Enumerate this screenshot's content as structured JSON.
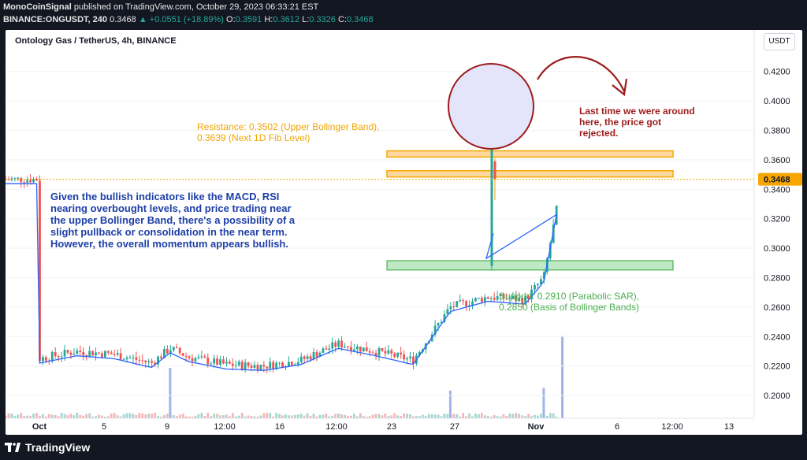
{
  "header": {
    "author": "MonoCoinSignal",
    "published": "published on TradingView.com, October 29, 2023 06:33:21 EST",
    "symbol": "BINANCE:ONGUSDT, 240",
    "last": "0.3468",
    "change": "▲ +0.0551 (+18.89%)",
    "o_label": "O:",
    "o": "0.3591",
    "h_label": "H:",
    "h": "0.3612",
    "l_label": "L:",
    "l": "0.3326",
    "c_label": "C:",
    "c": "0.3468"
  },
  "chart_title": "Ontology Gas / TetherUS, 4h, BINANCE",
  "currency": "USDT",
  "footer": {
    "brand": "TradingView",
    "logo_icon": "tradingview-logo-icon"
  },
  "colors": {
    "up": "#26a69a",
    "down": "#ef5350",
    "resistance": "#f7a600",
    "support": "#4caf50",
    "bb_basis": "#2962ff",
    "note_blue": "#1e3fa8",
    "note_red": "#9c1c1c",
    "price_tag": "#f7a600"
  },
  "annotations": {
    "resistance": [
      "Resistance: 0.3502 (Upper Bollinger Band),",
      "0.3639 (Next 1D Fib Level)"
    ],
    "support": [
      "Support: 0.2910 (Parabolic SAR),",
      "0.2850 (Basis of Bollinger Bands)"
    ],
    "analysis": [
      "Given the bullish indicators like the MACD, RSI",
      "nearing overbought levels, and price trading near",
      "the upper Bollinger Band, there's a possibility of a",
      "slight pullback or consolidation in the near term.",
      "However, the overall momentum appears bullish."
    ],
    "rejection": [
      "Last time we were around",
      "here, the price got",
      "rejected."
    ]
  },
  "chart_data": {
    "type": "candlestick",
    "title": "Ontology Gas / TetherUS, 4h, BINANCE",
    "y_axis": {
      "ticks": [
        "0.4200",
        "0.4000",
        "0.3800",
        "0.3600",
        "0.3400",
        "0.3200",
        "0.3000",
        "0.2800",
        "0.2600",
        "0.2400",
        "0.2200",
        "0.2000"
      ],
      "range": [
        0.1915,
        0.4375
      ]
    },
    "x_axis": {
      "ticks": [
        "Oct",
        "5",
        "9",
        "12:00",
        "16",
        "12:00",
        "23",
        "27",
        "Nov",
        "6",
        "12:00",
        "13"
      ]
    },
    "last_price": 0.3468,
    "resistance_zones": [
      [
        0.35,
        0.351
      ],
      [
        0.3635,
        0.3645
      ]
    ],
    "support_zone": [
      0.2852,
      0.2915
    ],
    "price_path": [
      {
        "date": "Oct 1",
        "price": 0.225
      },
      {
        "date": "Oct 3",
        "price": 0.23
      },
      {
        "date": "Oct 5",
        "price": 0.228
      },
      {
        "date": "Oct 7",
        "price": 0.222
      },
      {
        "date": "Oct 8",
        "price": 0.232
      },
      {
        "date": "Oct 9",
        "price": 0.226
      },
      {
        "date": "Oct 11",
        "price": 0.221
      },
      {
        "date": "Oct 13",
        "price": 0.22
      },
      {
        "date": "Oct 15",
        "price": 0.224
      },
      {
        "date": "Oct 17",
        "price": 0.235
      },
      {
        "date": "Oct 19",
        "price": 0.23
      },
      {
        "date": "Oct 21",
        "price": 0.224
      },
      {
        "date": "Oct 23",
        "price": 0.26
      },
      {
        "date": "Oct 25",
        "price": 0.267
      },
      {
        "date": "Oct 27",
        "price": 0.265
      },
      {
        "date": "Oct 28",
        "price": 0.28
      },
      {
        "date": "Oct 29",
        "price": 0.3468
      }
    ],
    "volume_spikes": [
      {
        "date": "Oct 8",
        "relative": 0.58
      },
      {
        "date": "Oct 23",
        "relative": 0.32
      },
      {
        "date": "Oct 28",
        "relative": 0.35
      },
      {
        "date": "Oct 29",
        "relative": 0.95
      }
    ]
  }
}
